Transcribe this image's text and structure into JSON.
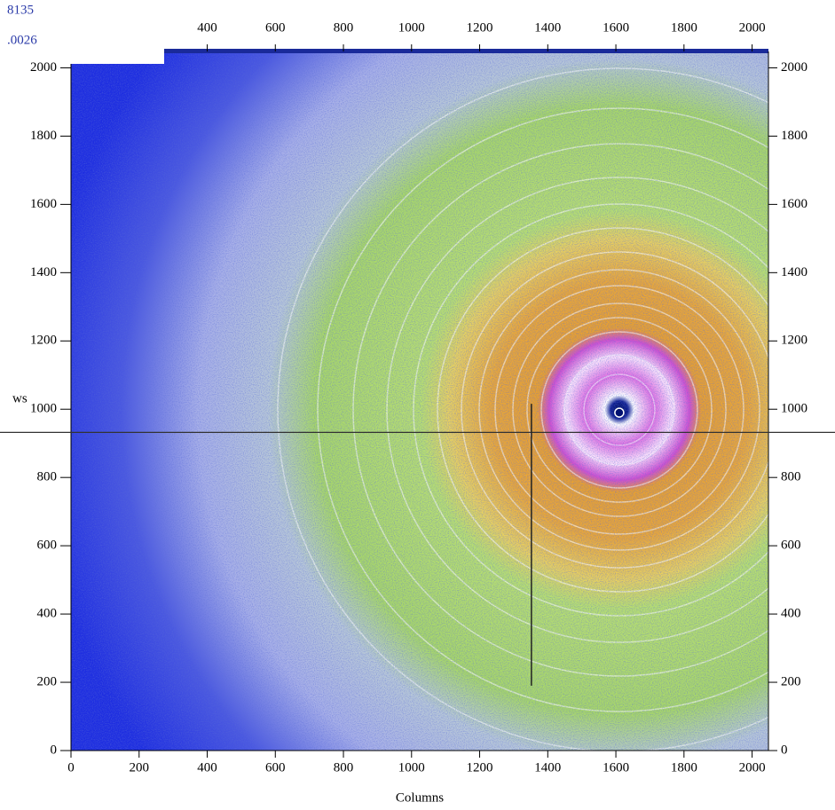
{
  "corner_labels": {
    "max": "8135",
    "min": ".0026"
  },
  "image": {
    "x_label": "Columns",
    "y_label": "ws",
    "xlim": [
      0,
      2048
    ],
    "ylim": [
      0,
      2048
    ],
    "bottom_xticks": [
      0,
      200,
      400,
      600,
      800,
      1000,
      1200,
      1400,
      1600,
      1800,
      2000
    ],
    "top_xticks": [
      400,
      600,
      800,
      1000,
      1200,
      1400,
      1600,
      1800,
      2000
    ],
    "yticks": [
      0,
      200,
      400,
      600,
      800,
      1000,
      1200,
      1400,
      1600,
      1800,
      2000
    ],
    "beam_center": [
      1610,
      990
    ],
    "crosshair": {
      "x": 1352,
      "y": 932,
      "x_line_from": 190,
      "x_line_to": 1016
    }
  }
}
